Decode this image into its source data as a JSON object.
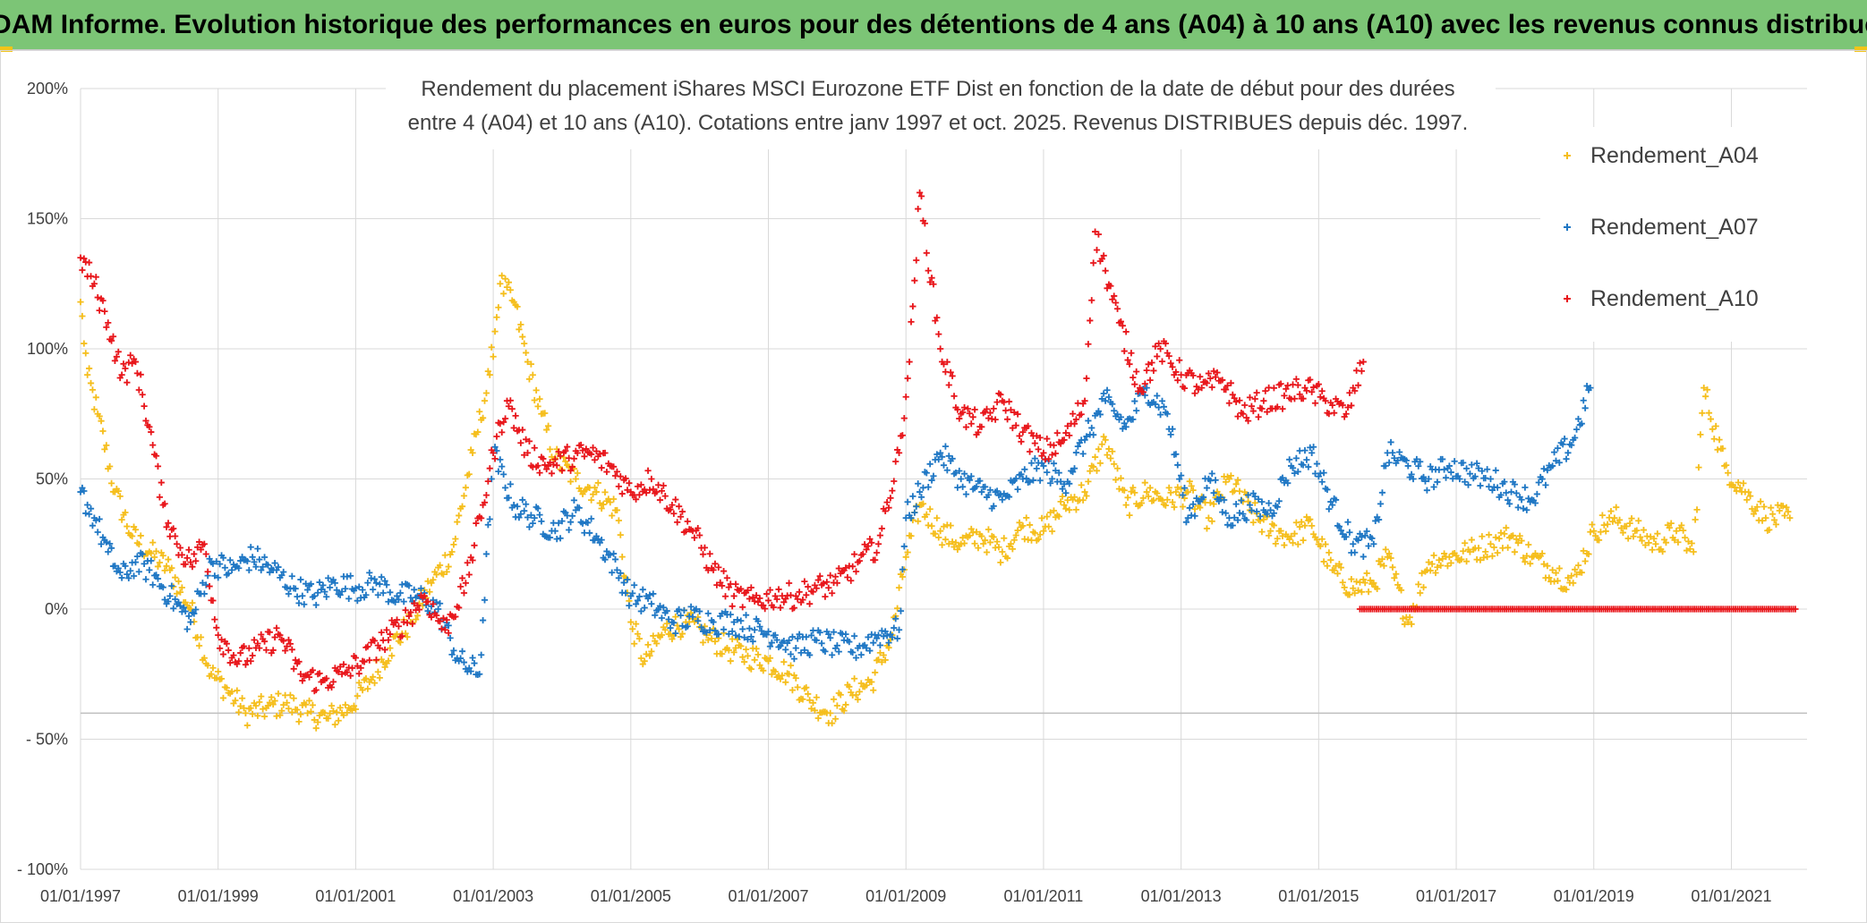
{
  "header": {
    "title": "ADAM Informe. Evolution historique des performances en euros pour des détentions de 4 ans (A04) à 10 ans (A10) avec les revenus connus distribués"
  },
  "chart_data": {
    "type": "scatter",
    "title_lines": [
      "Rendement du placement iShares MSCI Eurozone ETF Dist en fonction de la date de début pour des durées",
      "entre 4 (A04) et 10 ans (A10). Cotations entre janv 1997 et oct. 2025. Revenus DISTRIBUES depuis déc. 1997."
    ],
    "xlabel": "",
    "ylabel": "",
    "x_ticks": [
      "01/01/1997",
      "01/01/1999",
      "01/01/2001",
      "01/01/2003",
      "01/01/2005",
      "01/01/2007",
      "01/01/2009",
      "01/01/2011",
      "01/01/2013",
      "01/01/2015",
      "01/01/2017",
      "01/01/2019",
      "01/01/2021"
    ],
    "y_ticks": [
      "200%",
      "150%",
      "100%",
      "50%",
      "0%",
      "- 50%",
      "- 100%"
    ],
    "y_tick_values": [
      200,
      150,
      100,
      50,
      0,
      -50,
      -100
    ],
    "xlim": [
      "1997-01-01",
      "2022-01-01"
    ],
    "ylim": [
      -100,
      200
    ],
    "marker": "+",
    "grid": true,
    "legend_position": "right",
    "series": [
      {
        "name": "Rendement_A04",
        "color": "#f5be1c",
        "x": [
          1997.0,
          1997.1,
          1997.25,
          1997.5,
          1997.75,
          1998.0,
          1998.3,
          1998.6,
          1998.9,
          1999.1,
          1999.4,
          1999.7,
          2000.0,
          2000.3,
          2000.6,
          2000.9,
          2001.2,
          2001.5,
          2001.8,
          2002.1,
          2002.4,
          2002.7,
          2002.95,
          2003.1,
          2003.3,
          2003.5,
          2003.7,
          2003.9,
          2004.2,
          2004.5,
          2004.8,
          2005.0,
          2005.2,
          2005.5,
          2005.8,
          2006.1,
          2006.4,
          2006.7,
          2007.0,
          2007.3,
          2007.6,
          2007.9,
          2008.2,
          2008.5,
          2008.8,
          2009.0,
          2009.2,
          2009.5,
          2009.8,
          2010.1,
          2010.4,
          2010.7,
          2011.0,
          2011.3,
          2011.6,
          2011.9,
          2012.2,
          2012.5,
          2012.8,
          2013.1,
          2013.4,
          2013.7,
          2014.0,
          2014.3,
          2014.6,
          2014.9,
          2015.2,
          2015.5,
          2015.8,
          2016.0,
          2016.3,
          2016.6,
          2016.9,
          2017.2,
          2017.5,
          2017.8,
          2018.1,
          2018.4,
          2018.7,
          2019.0,
          2019.3,
          2019.6,
          2019.9,
          2020.2,
          2020.45,
          2020.6,
          2020.9,
          2021.2,
          2021.5,
          2021.85
        ],
        "y": [
          118,
          90,
          75,
          45,
          28,
          22,
          15,
          0,
          -25,
          -30,
          -40,
          -38,
          -36,
          -40,
          -42,
          -38,
          -28,
          -15,
          -5,
          10,
          22,
          60,
          90,
          125,
          118,
          95,
          75,
          58,
          50,
          45,
          38,
          -5,
          -20,
          -8,
          -5,
          -10,
          -15,
          -18,
          -20,
          -25,
          -35,
          -40,
          -32,
          -28,
          -10,
          20,
          40,
          30,
          25,
          28,
          22,
          32,
          30,
          40,
          45,
          65,
          40,
          45,
          42,
          45,
          35,
          50,
          38,
          30,
          28,
          32,
          15,
          8,
          10,
          20,
          -5,
          18,
          20,
          22,
          25,
          28,
          20,
          15,
          10,
          30,
          35,
          30,
          25,
          30,
          22,
          85,
          55,
          45,
          35,
          35
        ]
      },
      {
        "name": "Rendement_A07",
        "color": "#1f77c4",
        "x": [
          1997.0,
          1997.2,
          1997.4,
          1997.6,
          1997.8,
          1998.0,
          1998.3,
          1998.6,
          1998.9,
          1999.2,
          1999.5,
          1999.8,
          2000.1,
          2000.4,
          2000.7,
          2001.0,
          2001.3,
          2001.6,
          2001.9,
          2002.2,
          2002.5,
          2002.8,
          2003.0,
          2003.3,
          2003.6,
          2003.9,
          2004.2,
          2004.5,
          2004.8,
          2005.0,
          2005.3,
          2005.6,
          2005.9,
          2006.2,
          2006.5,
          2006.8,
          2007.1,
          2007.4,
          2007.7,
          2008.0,
          2008.3,
          2008.6,
          2008.9,
          2009.0,
          2009.2,
          2009.5,
          2009.8,
          2010.1,
          2010.4,
          2010.7,
          2011.0,
          2011.3,
          2011.6,
          2011.9,
          2012.2,
          2012.5,
          2012.8,
          2013.1,
          2013.4,
          2013.7,
          2014.0,
          2014.3,
          2014.6,
          2014.9,
          2015.2,
          2015.5,
          2015.8,
          2016.0,
          2016.3,
          2016.6,
          2016.9,
          2017.2,
          2017.5,
          2017.8,
          2018.1,
          2018.4,
          2018.7,
          2018.95
        ],
        "y": [
          45,
          35,
          22,
          12,
          18,
          15,
          5,
          -5,
          18,
          15,
          20,
          15,
          8,
          5,
          10,
          8,
          10,
          5,
          5,
          0,
          -20,
          -25,
          60,
          40,
          35,
          30,
          38,
          28,
          15,
          5,
          2,
          -5,
          -3,
          -5,
          -5,
          -8,
          -10,
          -15,
          -12,
          -14,
          -15,
          -10,
          -8,
          35,
          45,
          60,
          50,
          45,
          42,
          50,
          55,
          48,
          65,
          80,
          70,
          85,
          75,
          35,
          50,
          35,
          40,
          38,
          55,
          60,
          40,
          25,
          25,
          60,
          55,
          50,
          55,
          52,
          50,
          45,
          42,
          55,
          65,
          85
        ]
      },
      {
        "name": "Rendement_A10",
        "color": "#e8161b",
        "x": [
          1997.0,
          1997.2,
          1997.4,
          1997.6,
          1997.8,
          1998.0,
          1998.2,
          1998.4,
          1998.6,
          1998.8,
          1999.0,
          1999.3,
          1999.6,
          1999.9,
          2000.2,
          2000.5,
          2000.8,
          2001.1,
          2001.4,
          2001.7,
          2002.0,
          2002.3,
          2002.6,
          2002.85,
          2003.0,
          2003.2,
          2003.5,
          2003.8,
          2004.1,
          2004.4,
          2004.7,
          2005.0,
          2005.3,
          2005.6,
          2005.9,
          2006.2,
          2006.5,
          2006.8,
          2007.1,
          2007.4,
          2007.7,
          2008.0,
          2008.3,
          2008.6,
          2008.9,
          2009.05,
          2009.2,
          2009.5,
          2009.8,
          2010.1,
          2010.4,
          2010.7,
          2011.0,
          2011.3,
          2011.6,
          2011.75,
          2011.9,
          2012.1,
          2012.4,
          2012.7,
          2013.0,
          2013.3,
          2013.6,
          2013.9,
          2014.2,
          2014.5,
          2014.8,
          2015.1,
          2015.4,
          2015.65
        ],
        "y": [
          135,
          125,
          110,
          90,
          95,
          70,
          40,
          25,
          18,
          25,
          -10,
          -20,
          -15,
          -10,
          -25,
          -28,
          -25,
          -20,
          -12,
          -5,
          5,
          -8,
          10,
          40,
          60,
          80,
          60,
          55,
          58,
          60,
          55,
          45,
          50,
          40,
          30,
          15,
          5,
          3,
          5,
          5,
          8,
          10,
          18,
          25,
          60,
          95,
          160,
          100,
          75,
          70,
          80,
          68,
          60,
          65,
          80,
          145,
          130,
          110,
          85,
          100,
          90,
          85,
          88,
          75,
          80,
          82,
          85,
          80,
          75,
          95
        ]
      },
      {
        "name": "Rendement_A10 (0%)",
        "color": "#e8161b",
        "x_range": [
          2015.6,
          2021.95
        ],
        "y": [
          0
        ]
      }
    ],
    "legend": [
      "Rendement_A04",
      "Rendement_A07",
      "Rendement_A10"
    ]
  }
}
